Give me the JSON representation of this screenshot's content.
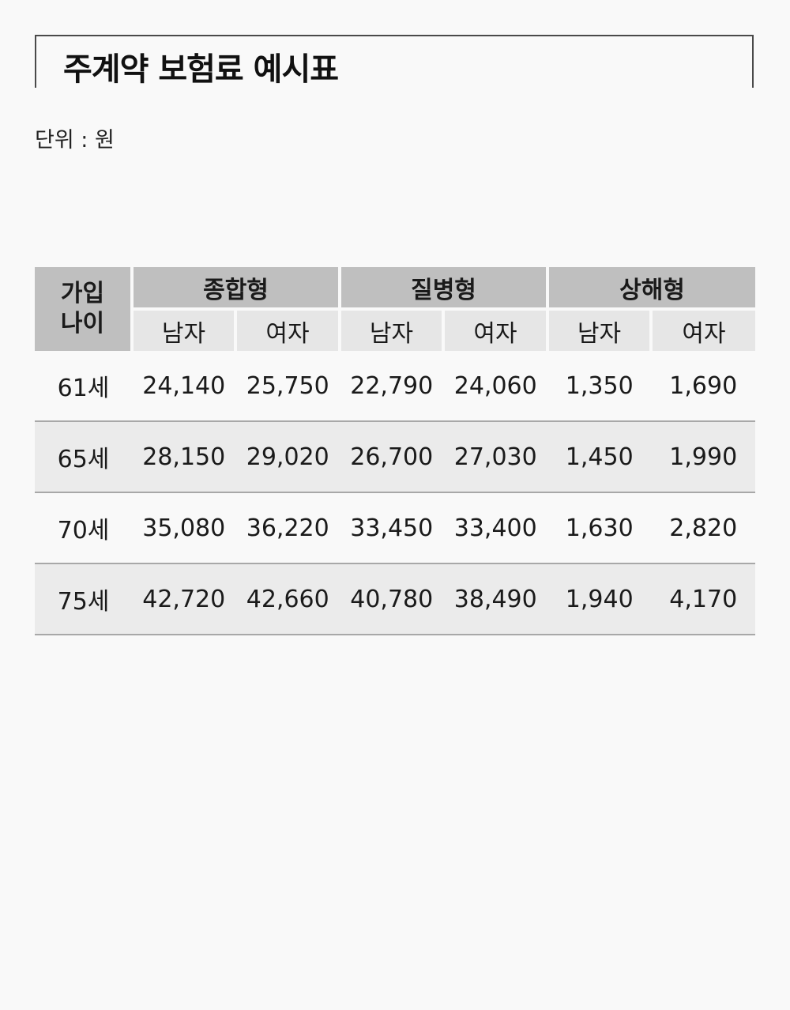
{
  "title": "주계약 보험료 예시표",
  "unit_label": "단위 : 원",
  "table": {
    "age_header": [
      "가입",
      "나이"
    ],
    "groups": [
      "종합형",
      "질병형",
      "상해형"
    ],
    "sub_headers": [
      "남자",
      "여자",
      "남자",
      "여자",
      "남자",
      "여자"
    ],
    "rows": [
      {
        "age": "61세",
        "values": [
          "24,140",
          "25,750",
          "22,790",
          "24,060",
          "1,350",
          "1,690"
        ]
      },
      {
        "age": "65세",
        "values": [
          "28,150",
          "29,020",
          "26,700",
          "27,030",
          "1,450",
          "1,990"
        ]
      },
      {
        "age": "70세",
        "values": [
          "35,080",
          "36,220",
          "33,450",
          "33,400",
          "1,630",
          "2,820"
        ]
      },
      {
        "age": "75세",
        "values": [
          "42,720",
          "42,660",
          "40,780",
          "38,490",
          "1,940",
          "4,170"
        ]
      }
    ]
  },
  "colors": {
    "header_dark": "#bfbfbf",
    "header_light": "#e6e6e6",
    "row_shade": "#ebebeb",
    "row_border": "#a8a8a8",
    "background": "#f9f9f9"
  }
}
